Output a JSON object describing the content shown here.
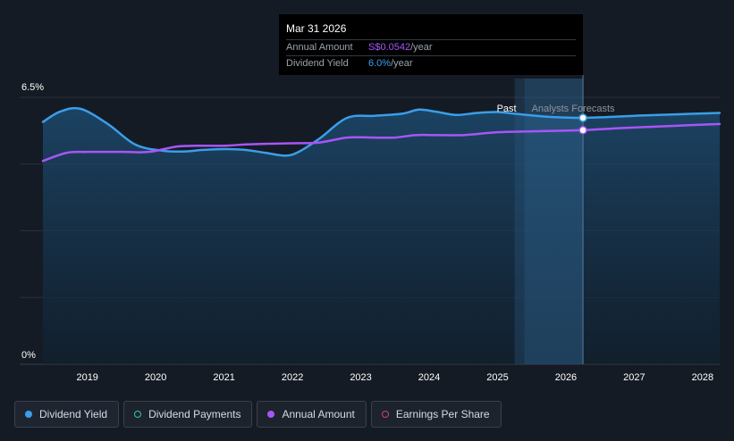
{
  "tooltip": {
    "date": "Mar 31 2026",
    "amount_label": "Annual Amount",
    "amount_value": "S$0.0542",
    "amount_unit": "/year",
    "yield_label": "Dividend Yield",
    "yield_value": "6.0%",
    "yield_unit": "/year"
  },
  "legend": {
    "items": [
      {
        "label": "Dividend Yield",
        "color": "#3a9eea"
      },
      {
        "label": "Dividend Payments",
        "color": "#2ec4b6"
      },
      {
        "label": "Annual Amount",
        "color": "#a855f7"
      },
      {
        "label": "Earnings Per Share",
        "color": "#d63c78"
      }
    ]
  },
  "chart_data": {
    "type": "line",
    "y_tick_labels": [
      "6.5%",
      "0%"
    ],
    "ylim": [
      0,
      6.5
    ],
    "x_tick_labels": [
      "2019",
      "2020",
      "2021",
      "2022",
      "2023",
      "2024",
      "2025",
      "2026",
      "2027",
      "2028"
    ],
    "xlim": [
      2018.35,
      2028.25
    ],
    "region_labels": {
      "past": "Past",
      "forecast": "Analysts Forecasts"
    },
    "forecast_start": 2025.25,
    "highlight_x": 2026.25,
    "grid": true,
    "series": [
      {
        "name": "Dividend Yield",
        "color": "#3a9eea",
        "x": [
          2018.35,
          2018.6,
          2018.9,
          2019.3,
          2019.7,
          2020.1,
          2020.4,
          2020.7,
          2021.0,
          2021.3,
          2021.6,
          2021.9,
          2022.1,
          2022.4,
          2022.8,
          2023.2,
          2023.6,
          2023.85,
          2024.1,
          2024.4,
          2024.7,
          2025.0,
          2025.25,
          2025.5,
          2025.8,
          2026.25,
          2026.6,
          2027.0,
          2027.5,
          2028.25
        ],
        "y": [
          5.9,
          6.15,
          6.22,
          5.85,
          5.35,
          5.2,
          5.18,
          5.22,
          5.24,
          5.22,
          5.15,
          5.08,
          5.18,
          5.5,
          6.0,
          6.05,
          6.1,
          6.2,
          6.15,
          6.07,
          6.12,
          6.14,
          6.1,
          6.06,
          6.02,
          6.0,
          6.02,
          6.05,
          6.08,
          6.12
        ]
      },
      {
        "name": "Annual Amount",
        "color": "#a855f7",
        "x": [
          2018.35,
          2018.7,
          2019.0,
          2019.5,
          2019.9,
          2020.3,
          2020.6,
          2021.0,
          2021.3,
          2021.7,
          2022.0,
          2022.4,
          2022.8,
          2023.2,
          2023.5,
          2023.8,
          2024.1,
          2024.5,
          2025.0,
          2025.5,
          2026.25,
          2026.8,
          2027.5,
          2028.25
        ],
        "y": [
          4.95,
          5.15,
          5.17,
          5.17,
          5.17,
          5.3,
          5.32,
          5.32,
          5.35,
          5.37,
          5.38,
          5.4,
          5.52,
          5.52,
          5.52,
          5.58,
          5.58,
          5.58,
          5.65,
          5.67,
          5.7,
          5.75,
          5.8,
          5.85
        ]
      }
    ]
  }
}
